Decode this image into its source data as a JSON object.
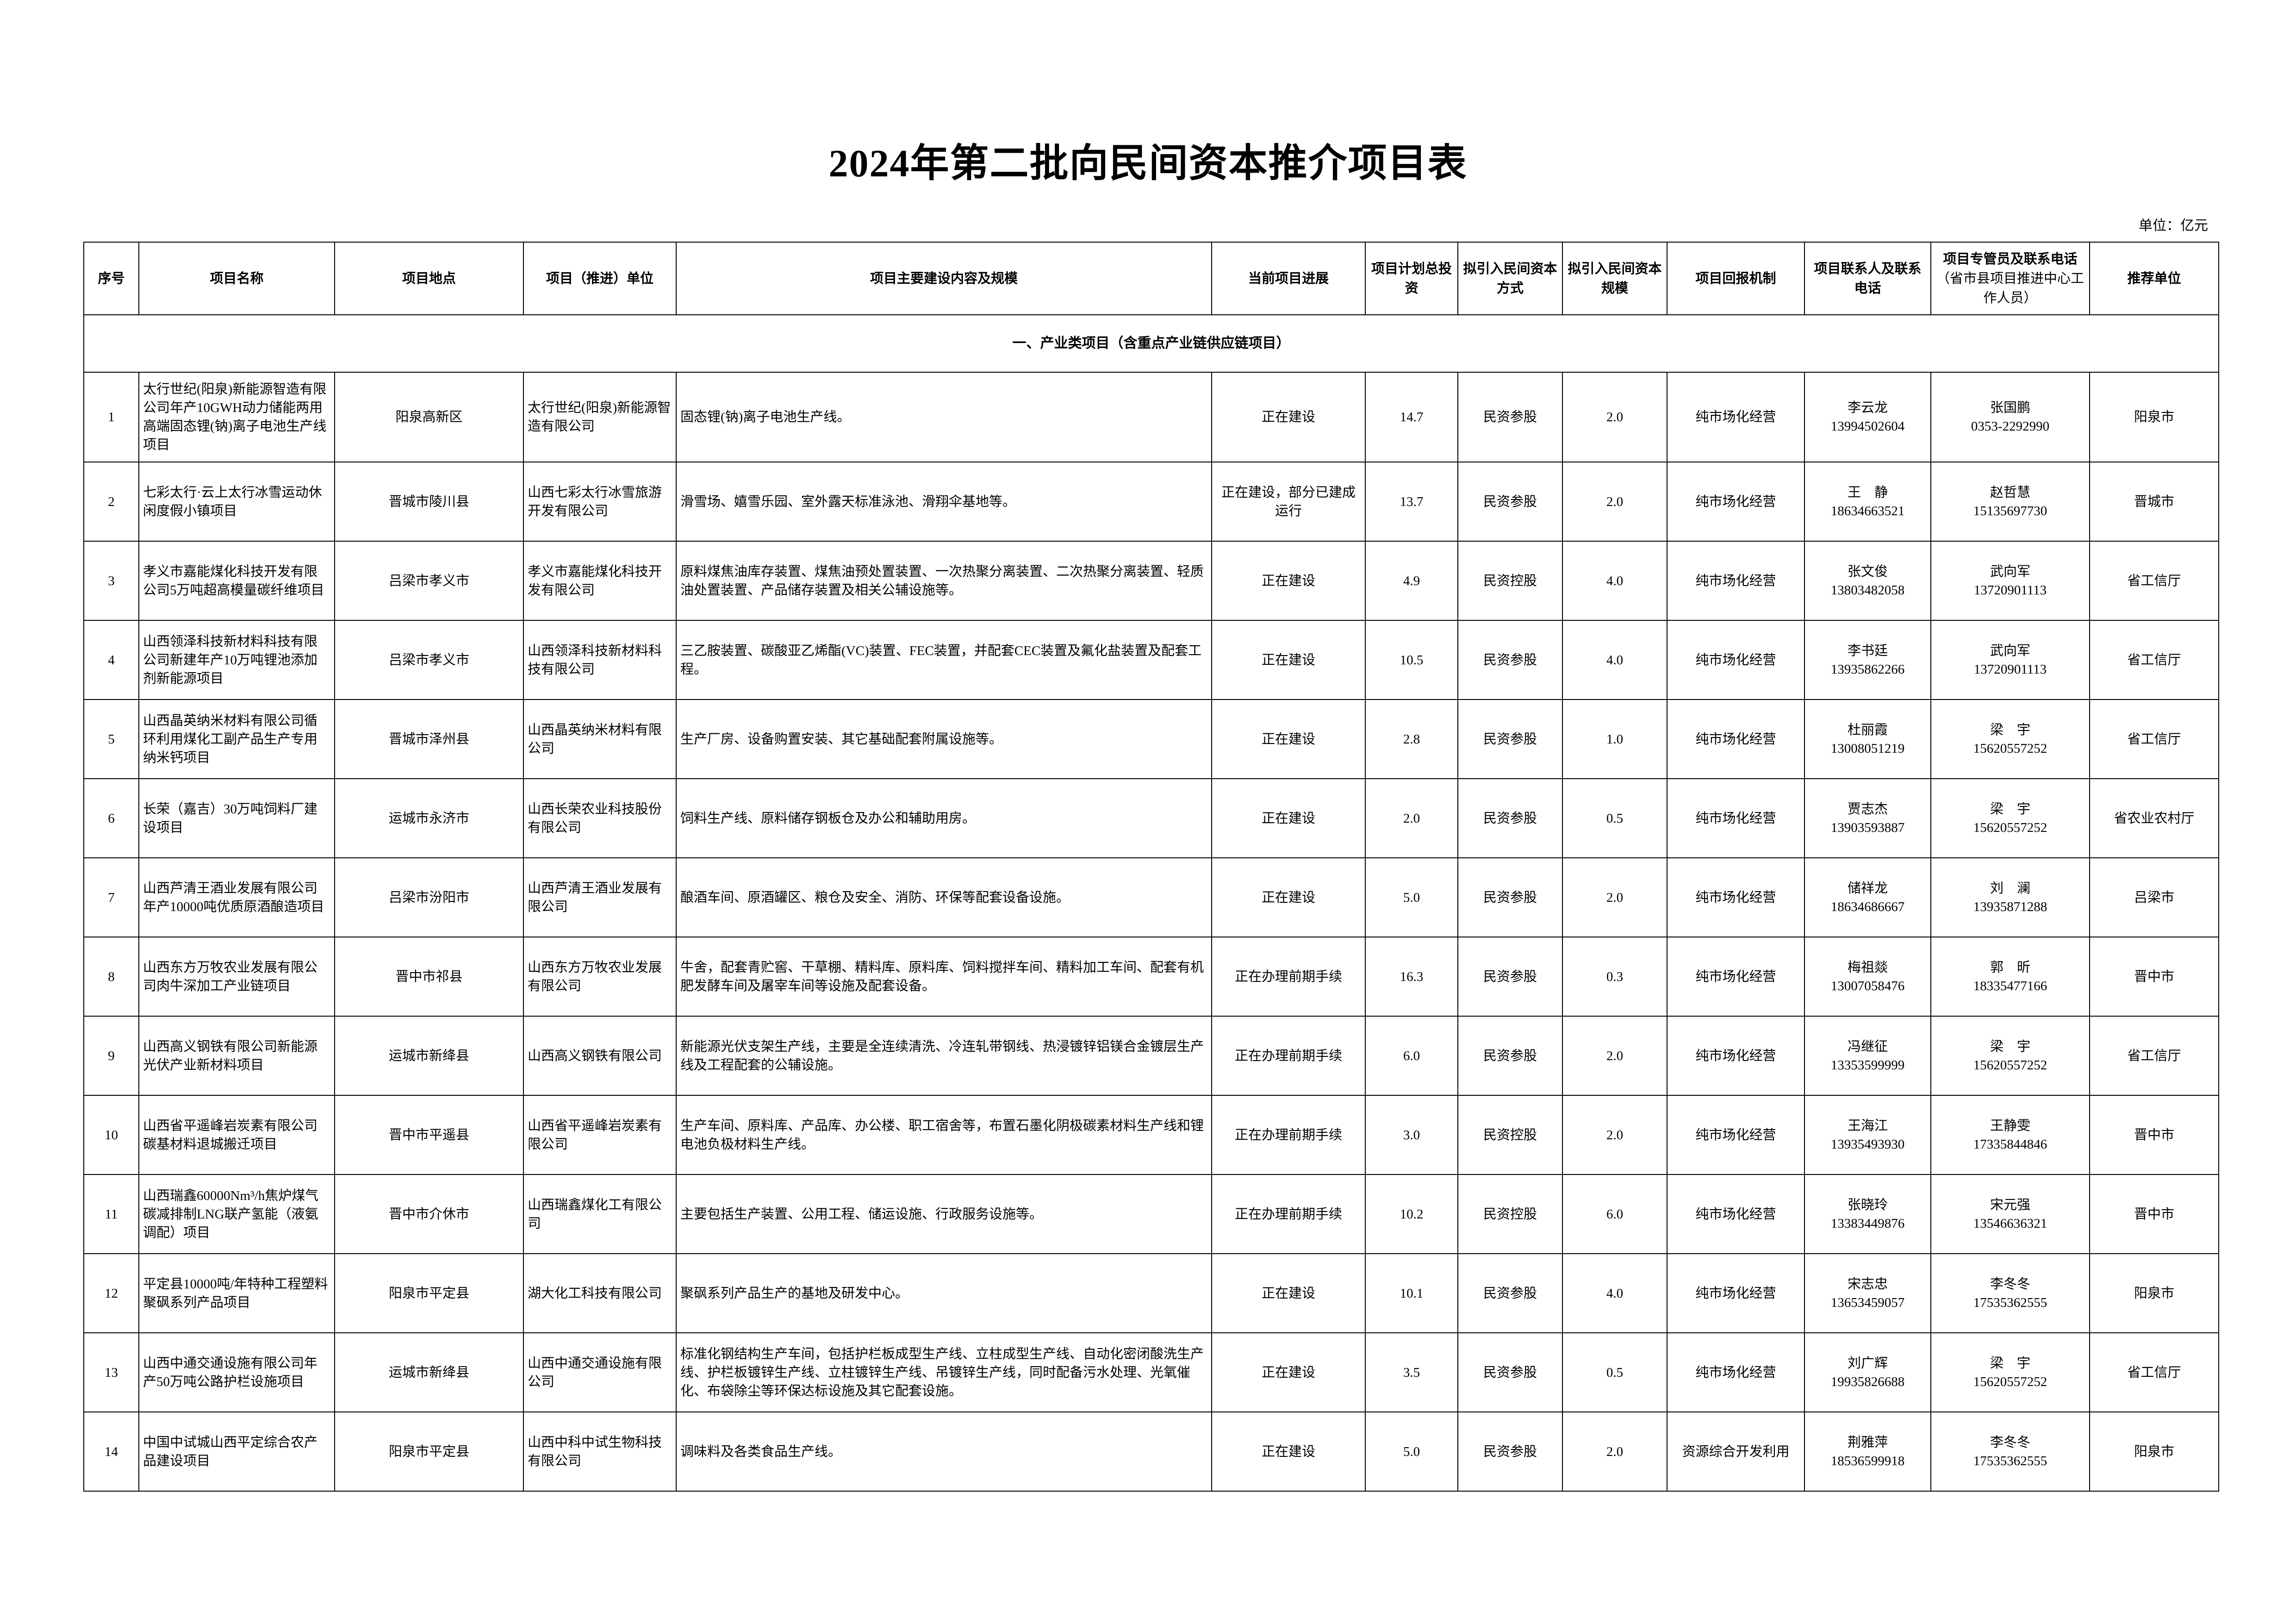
{
  "title": "2024年第二批向民间资本推介项目表",
  "unit": "单位：亿元",
  "headers": {
    "no": "序号",
    "name": "项目名称",
    "location": "项目地点",
    "unit": "项目（推进）单位",
    "content": "项目主要建设内容及规模",
    "progress": "当前项目进展",
    "investment": "项目计划总投资",
    "mode": "拟引入民间资本方式",
    "scale": "拟引入民间资本规模",
    "return": "项目回报机制",
    "contact": "项目联系人及联系电话",
    "manager": "项目专管员及联系电话",
    "manager_note": "（省市县项目推进中心工作人员）",
    "recommender": "推荐单位"
  },
  "section_title": "一、产业类项目（含重点产业链供应链项目）",
  "rows": [
    {
      "no": "1",
      "name": "太行世纪(阳泉)新能源智造有限公司年产10GWH动力储能两用高端固态锂(钠)离子电池生产线项目",
      "location": "阳泉高新区",
      "unit": "太行世纪(阳泉)新能源智造有限公司",
      "content": "固态锂(钠)离子电池生产线。",
      "progress": "正在建设",
      "investment": "14.7",
      "mode": "民资参股",
      "scale": "2.0",
      "return": "纯市场化经营",
      "contact_name": "李云龙",
      "contact_phone": "13994502604",
      "manager_name": "张国鹏",
      "manager_phone": "0353-2292990",
      "recommender": "阳泉市"
    },
    {
      "no": "2",
      "name": "七彩太行·云上太行冰雪运动休闲度假小镇项目",
      "location": "晋城市陵川县",
      "unit": "山西七彩太行冰雪旅游开发有限公司",
      "content": "滑雪场、嬉雪乐园、室外露天标准泳池、滑翔伞基地等。",
      "progress": "正在建设，部分已建成运行",
      "investment": "13.7",
      "mode": "民资参股",
      "scale": "2.0",
      "return": "纯市场化经营",
      "contact_name": "王　静",
      "contact_phone": "18634663521",
      "manager_name": "赵哲慧",
      "manager_phone": "15135697730",
      "recommender": "晋城市"
    },
    {
      "no": "3",
      "name": "孝义市嘉能煤化科技开发有限公司5万吨超高模量碳纤维项目",
      "location": "吕梁市孝义市",
      "unit": "孝义市嘉能煤化科技开发有限公司",
      "content": "原料煤焦油库存装置、煤焦油预处置装置、一次热聚分离装置、二次热聚分离装置、轻质油处置装置、产品储存装置及相关公辅设施等。",
      "progress": "正在建设",
      "investment": "4.9",
      "mode": "民资控股",
      "scale": "4.0",
      "return": "纯市场化经营",
      "contact_name": "张文俊",
      "contact_phone": "13803482058",
      "manager_name": "武向军",
      "manager_phone": "13720901113",
      "recommender": "省工信厅"
    },
    {
      "no": "4",
      "name": "山西领泽科技新材料科技有限公司新建年产10万吨锂池添加剂新能源项目",
      "location": "吕梁市孝义市",
      "unit": "山西领泽科技新材料科技有限公司",
      "content": "三乙胺装置、碳酸亚乙烯酯(VC)装置、FEC装置，并配套CEC装置及氟化盐装置及配套工程。",
      "progress": "正在建设",
      "investment": "10.5",
      "mode": "民资参股",
      "scale": "4.0",
      "return": "纯市场化经营",
      "contact_name": "李书廷",
      "contact_phone": "13935862266",
      "manager_name": "武向军",
      "manager_phone": "13720901113",
      "recommender": "省工信厅"
    },
    {
      "no": "5",
      "name": "山西晶英纳米材料有限公司循环利用煤化工副产品生产专用纳米钙项目",
      "location": "晋城市泽州县",
      "unit": "山西晶英纳米材料有限公司",
      "content": "生产厂房、设备购置安装、其它基础配套附属设施等。",
      "progress": "正在建设",
      "investment": "2.8",
      "mode": "民资参股",
      "scale": "1.0",
      "return": "纯市场化经营",
      "contact_name": "杜丽霞",
      "contact_phone": "13008051219",
      "manager_name": "梁　宇",
      "manager_phone": "15620557252",
      "recommender": "省工信厅"
    },
    {
      "no": "6",
      "name": "长荣（嘉吉）30万吨饲料厂建设项目",
      "location": "运城市永济市",
      "unit": "山西长荣农业科技股份有限公司",
      "content": "饲料生产线、原料储存钢板仓及办公和辅助用房。",
      "progress": "正在建设",
      "investment": "2.0",
      "mode": "民资参股",
      "scale": "0.5",
      "return": "纯市场化经营",
      "contact_name": "贾志杰",
      "contact_phone": "13903593887",
      "manager_name": "梁　宇",
      "manager_phone": "15620557252",
      "recommender": "省农业农村厅"
    },
    {
      "no": "7",
      "name": "山西芦清王酒业发展有限公司年产10000吨优质原酒酿造项目",
      "location": "吕梁市汾阳市",
      "unit": "山西芦清王酒业发展有限公司",
      "content": "酿酒车间、原酒罐区、粮仓及安全、消防、环保等配套设备设施。",
      "progress": "正在建设",
      "investment": "5.0",
      "mode": "民资参股",
      "scale": "2.0",
      "return": "纯市场化经营",
      "contact_name": "储祥龙",
      "contact_phone": "18634686667",
      "manager_name": "刘　澜",
      "manager_phone": "13935871288",
      "recommender": "吕梁市"
    },
    {
      "no": "8",
      "name": "山西东方万牧农业发展有限公司肉牛深加工产业链项目",
      "location": "晋中市祁县",
      "unit": "山西东方万牧农业发展有限公司",
      "content": "牛舍，配套青贮窖、干草棚、精料库、原料库、饲料搅拌车间、精料加工车间、配套有机肥发酵车间及屠宰车间等设施及配套设备。",
      "progress": "正在办理前期手续",
      "investment": "16.3",
      "mode": "民资参股",
      "scale": "0.3",
      "return": "纯市场化经营",
      "contact_name": "梅祖燚",
      "contact_phone": "13007058476",
      "manager_name": "郭　昕",
      "manager_phone": "18335477166",
      "recommender": "晋中市"
    },
    {
      "no": "9",
      "name": "山西高义钢铁有限公司新能源光伏产业新材料项目",
      "location": "运城市新绛县",
      "unit": "山西高义钢铁有限公司",
      "content": "新能源光伏支架生产线，主要是全连续清洗、冷连轧带钢线、热浸镀锌铝镁合金镀层生产线及工程配套的公辅设施。",
      "progress": "正在办理前期手续",
      "investment": "6.0",
      "mode": "民资参股",
      "scale": "2.0",
      "return": "纯市场化经营",
      "contact_name": "冯继征",
      "contact_phone": "13353599999",
      "manager_name": "梁　宇",
      "manager_phone": "15620557252",
      "recommender": "省工信厅"
    },
    {
      "no": "10",
      "name": "山西省平遥峰岩炭素有限公司碳基材料退城搬迁项目",
      "location": "晋中市平遥县",
      "unit": "山西省平遥峰岩炭素有限公司",
      "content": "生产车间、原料库、产品库、办公楼、职工宿舍等，布置石墨化阴极碳素材料生产线和锂电池负极材料生产线。",
      "progress": "正在办理前期手续",
      "investment": "3.0",
      "mode": "民资控股",
      "scale": "2.0",
      "return": "纯市场化经营",
      "contact_name": "王海江",
      "contact_phone": "13935493930",
      "manager_name": "王静雯",
      "manager_phone": "17335844846",
      "recommender": "晋中市"
    },
    {
      "no": "11",
      "name": "山西瑞鑫60000Nm³/h焦炉煤气碳减排制LNG联产氢能（液氨调配）项目",
      "location": "晋中市介休市",
      "unit": "山西瑞鑫煤化工有限公司",
      "content": "主要包括生产装置、公用工程、储运设施、行政服务设施等。",
      "progress": "正在办理前期手续",
      "investment": "10.2",
      "mode": "民资控股",
      "scale": "6.0",
      "return": "纯市场化经营",
      "contact_name": "张晓玲",
      "contact_phone": "13383449876",
      "manager_name": "宋元强",
      "manager_phone": "13546636321",
      "recommender": "晋中市"
    },
    {
      "no": "12",
      "name": "平定县10000吨/年特种工程塑料聚砜系列产品项目",
      "location": "阳泉市平定县",
      "unit": "湖大化工科技有限公司",
      "content": "聚砜系列产品生产的基地及研发中心。",
      "progress": "正在建设",
      "investment": "10.1",
      "mode": "民资参股",
      "scale": "4.0",
      "return": "纯市场化经营",
      "contact_name": "宋志忠",
      "contact_phone": "13653459057",
      "manager_name": "李冬冬",
      "manager_phone": "17535362555",
      "recommender": "阳泉市"
    },
    {
      "no": "13",
      "name": "山西中通交通设施有限公司年产50万吨公路护栏设施项目",
      "location": "运城市新绛县",
      "unit": "山西中通交通设施有限公司",
      "content": "标准化钢结构生产车间，包括护栏板成型生产线、立柱成型生产线、自动化密闭酸洗生产线、护栏板镀锌生产线、立柱镀锌生产线、吊镀锌生产线，同时配备污水处理、光氧催化、布袋除尘等环保达标设施及其它配套设施。",
      "progress": "正在建设",
      "investment": "3.5",
      "mode": "民资参股",
      "scale": "0.5",
      "return": "纯市场化经营",
      "contact_name": "刘广辉",
      "contact_phone": "19935826688",
      "manager_name": "梁　宇",
      "manager_phone": "15620557252",
      "recommender": "省工信厅"
    },
    {
      "no": "14",
      "name": "中国中试城山西平定综合农产品建设项目",
      "location": "阳泉市平定县",
      "unit": "山西中科中试生物科技有限公司",
      "content": "调味料及各类食品生产线。",
      "progress": "正在建设",
      "investment": "5.0",
      "mode": "民资参股",
      "scale": "2.0",
      "return": "资源综合开发利用",
      "contact_name": "荆雅萍",
      "contact_phone": "18536599918",
      "manager_name": "李冬冬",
      "manager_phone": "17535362555",
      "recommender": "阳泉市"
    }
  ]
}
